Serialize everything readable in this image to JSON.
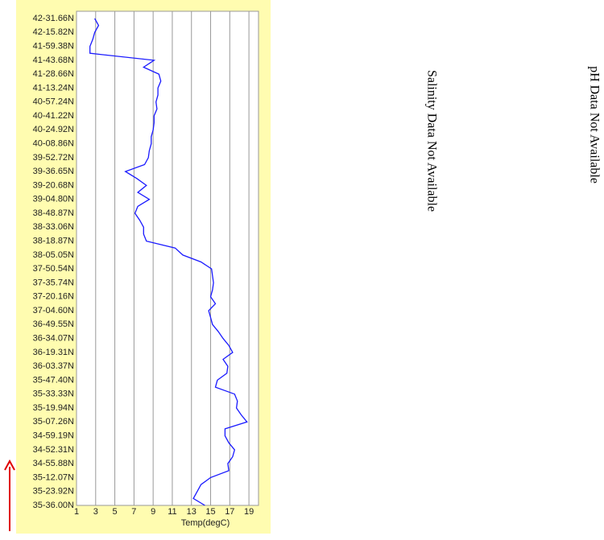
{
  "chart_data": {
    "type": "line",
    "categories": [
      "35-36.00N",
      null,
      "35-23.92N",
      null,
      "35-12.07N",
      null,
      "34-55.88N",
      null,
      "34-52.31N",
      null,
      "34-59.19N",
      null,
      "35-07.26N",
      null,
      "35-19.94N",
      null,
      "35-33.33N",
      null,
      "35-47.40N",
      null,
      "36-03.37N",
      null,
      "36-19.31N",
      null,
      "36-34.07N",
      null,
      "36-49.55N",
      null,
      "37-04.60N",
      null,
      "37-20.16N",
      null,
      "37-35.74N",
      null,
      "37-50.54N",
      null,
      "38-05.05N",
      null,
      "38-18.87N",
      null,
      "38-33.06N",
      null,
      "38-48.87N",
      null,
      "39-04.80N",
      null,
      "39-20.68N",
      null,
      "39-36.65N",
      null,
      "39-52.72N",
      null,
      "40-08.86N",
      null,
      "40-24.92N",
      null,
      "40-41.22N",
      null,
      "40-57.24N",
      null,
      "41-13.24N",
      null,
      "41-28.66N",
      null,
      "41-43.68N",
      null,
      "41-59.38N",
      null,
      "42-15.82N",
      null,
      "42-31.66N"
    ],
    "values": [
      14.4,
      13.2,
      13.6,
      14,
      15,
      16.9,
      16.8,
      17.3,
      17.5,
      16.9,
      16.5,
      16.5,
      18.8,
      18.2,
      17.7,
      17.8,
      17.5,
      15.5,
      15.7,
      16.7,
      16.8,
      16.3,
      17.3,
      16.9,
      16.3,
      15.8,
      15.2,
      15,
      14.8,
      15.5,
      15,
      15.2,
      15.3,
      15.2,
      15.1,
      14,
      12.1,
      11.3,
      8.3,
      8,
      8,
      7.6,
      7.1,
      7.4,
      8.6,
      7.4,
      8.3,
      7.3,
      6.1,
      8.1,
      8.5,
      8.6,
      8.8,
      8.8,
      9,
      9.1,
      9.1,
      9.4,
      9.3,
      9.5,
      9.5,
      9.8,
      9.6,
      8,
      9.1,
      2.4,
      2.4,
      2.7,
      2.9,
      3.3,
      2.9
    ],
    "color": "#1a1aff",
    "xlabel": "Temp(degC)",
    "xlim": [
      1,
      20
    ],
    "xticks": [
      1,
      3,
      5,
      7,
      9,
      11,
      13,
      15,
      17,
      19
    ],
    "grid": true
  },
  "notes": [
    "Salinity Data Not Available",
    "pH Data Not Available"
  ]
}
